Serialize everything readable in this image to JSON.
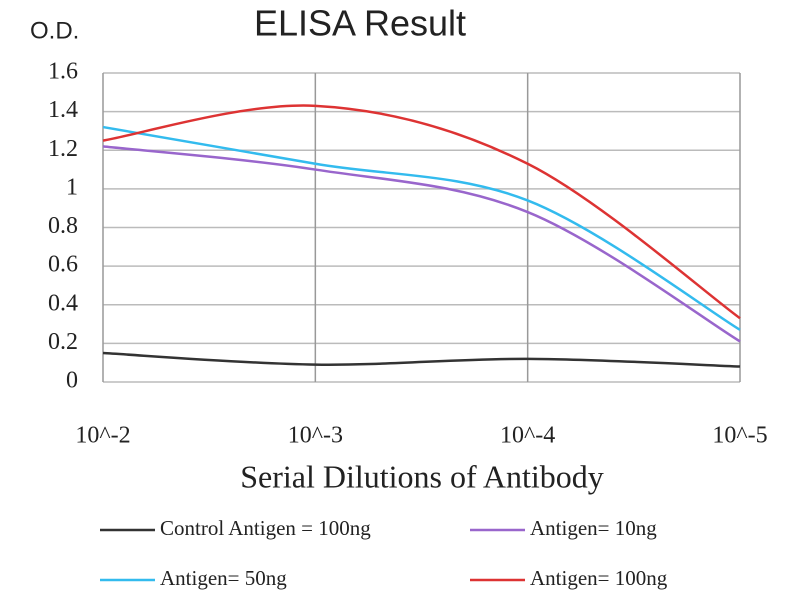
{
  "chart_data": {
    "type": "line",
    "title": "ELISA Result",
    "y_label": "O.D.",
    "x_label": "Serial Dilutions of Antibody",
    "categories": [
      "10^-2",
      "10^-3",
      "10^-4",
      "10^-5"
    ],
    "series": [
      {
        "name": "Control Antigen = 100ng",
        "color": "#333333",
        "values": [
          0.15,
          0.09,
          0.12,
          0.08
        ]
      },
      {
        "name": "Antigen= 10ng",
        "color": "#9966cc",
        "values": [
          1.22,
          1.1,
          0.88,
          0.21
        ]
      },
      {
        "name": "Antigen= 50ng",
        "color": "#33bbee",
        "values": [
          1.32,
          1.13,
          0.94,
          0.27
        ]
      },
      {
        "name": "Antigen= 100ng",
        "color": "#dd3333",
        "values": [
          1.25,
          1.43,
          1.13,
          0.33
        ]
      }
    ],
    "ylim": [
      0,
      1.6
    ],
    "yticks": [
      0,
      0.2,
      0.4,
      0.6,
      0.8,
      1,
      1.2,
      1.4,
      1.6
    ],
    "grid": true,
    "legend": "bottom"
  }
}
